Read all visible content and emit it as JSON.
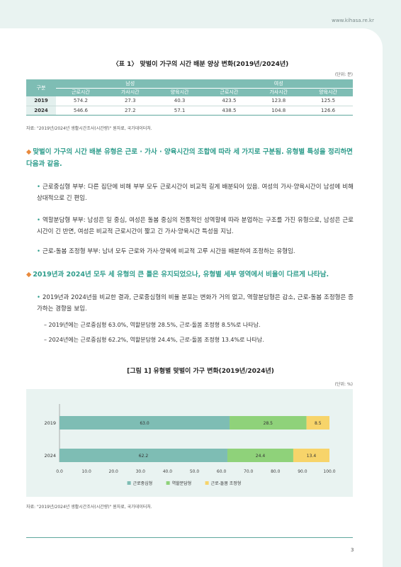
{
  "header": {
    "site": "www.kihasa.re.kr"
  },
  "table": {
    "title": "〈표 1〉 맞벌이 가구의 시간 배분 양상 변화(2019년/2024년)",
    "unit": "(단위: 분)",
    "corner": "구분",
    "groups": [
      "남성",
      "여성"
    ],
    "columns": [
      "근로시간",
      "가사시간",
      "양육시간",
      "근로시간",
      "가사시간",
      "양육시간"
    ],
    "rows": [
      {
        "year": "2019",
        "cells": [
          "574.2",
          "27.3",
          "40.3",
          "423.5",
          "123.8",
          "125.5"
        ]
      },
      {
        "year": "2024",
        "cells": [
          "546.6",
          "27.2",
          "57.1",
          "438.5",
          "104.8",
          "126.6"
        ]
      }
    ],
    "source": "자료: \"2019년/2024년 생활시간조사(시간량)\" 원자료, 국가데이터처."
  },
  "section1": {
    "heading": "맞벌이 가구의 시간 배분 유형은 근로 · 가사 · 양육시간의 조합에 따라 세 가지로 구분됨. 유형별 특성을 정리하면 다음과 같음.",
    "items": [
      "근로중심형 부부: 다른 집단에 비해 부부 모두 근로시간이 비교적 길게 배분되어 있음. 여성의 가사·양육시간이 남성에 비해 상대적으로 긴 편임.",
      "역할분담형 부부: 남성은 일 중심, 여성은 돌봄 중심의 전통적인 성역할에 따라 분업하는 구조를 가진 유형으로, 남성은 근로시간이 긴 반면, 여성은 비교적 근로시간이 짧고 긴 가사·양육시간 특성을 지님.",
      "근로-돌봄 조정형 부부: 남녀 모두 근로와 가사·양육에 비교적 고루 시간을 배분하여 조정하는 유형임."
    ]
  },
  "section2": {
    "heading": "2019년과 2024년 모두 세 유형의 큰 틀은 유지되었으나, 유형별 세부 영역에서 비율이 다르게 나타남.",
    "items": [
      "2019년과 2024년을 비교한 결과, 근로중심형의 비율 분포는 변화가 거의 없고, 역할분담형은 감소, 근로-돌봄 조정형은 증가하는 경향을 보임."
    ],
    "subitems": [
      "2019년에는 근로중심형 63.0%, 역할분담형 28.5%, 근로-돌봄 조정형 8.5%로 나타남.",
      "2024년에는 근로중심형 62.2%, 역할분담형 24.4%, 근로-돌봄 조정형 13.4%로 나타남."
    ]
  },
  "figure": {
    "title": "[그림 1] 유형별 맞벌이 가구 변화(2019년/2024년)",
    "unit": "(단위: %)",
    "source": "자료: \"2019년/2024년 생활시간조사(시간량)\" 원자료, 국가데이터처."
  },
  "chart_data": {
    "type": "bar",
    "orientation": "horizontal",
    "stacked": true,
    "categories": [
      "2019",
      "2024"
    ],
    "series": [
      {
        "name": "근로중심형",
        "values": [
          63.0,
          62.2
        ],
        "color": "#7ebdb4"
      },
      {
        "name": "역할분담형",
        "values": [
          28.5,
          24.4
        ],
        "color": "#8fd27a"
      },
      {
        "name": "근로-돌봄 조정형",
        "values": [
          8.5,
          13.4
        ],
        "color": "#f7d46a"
      }
    ],
    "xlim": [
      0,
      100
    ],
    "xticks": [
      "0.0",
      "10.0",
      "20.0",
      "30.0",
      "40.0",
      "50.0",
      "60.0",
      "70.0",
      "80.0",
      "90.0",
      "100.0"
    ],
    "data_labels": [
      [
        "63.0",
        "28.5",
        "8.5"
      ],
      [
        "62.2",
        "24.4",
        "13.4"
      ]
    ],
    "legend_position": "bottom",
    "grid": false
  },
  "footer": {
    "page": "3"
  }
}
